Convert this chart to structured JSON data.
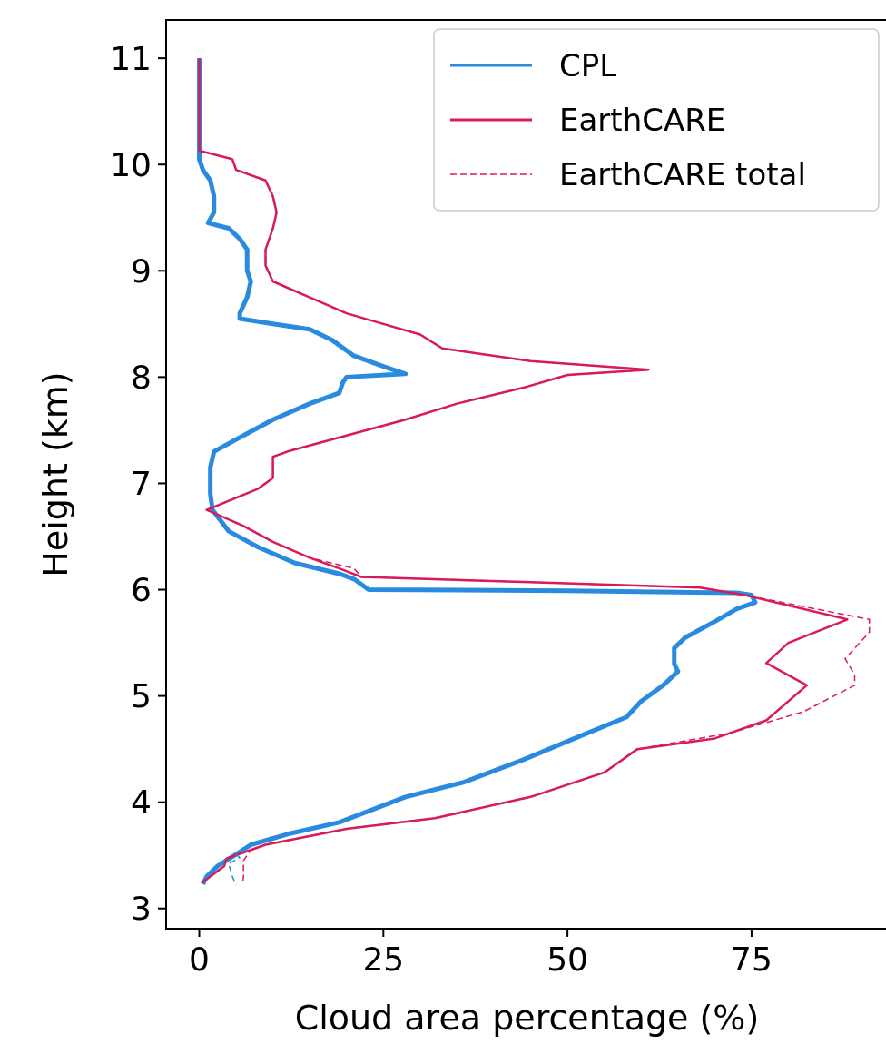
{
  "chart_data": {
    "type": "line",
    "xlabel": "Cloud area percentage (%)",
    "ylabel": "Height (km)",
    "xlim": [
      -4.5,
      93.5
    ],
    "xticks": [
      0,
      25,
      50,
      75
    ],
    "ylim": [
      2.81,
      11.36
    ],
    "yticks": [
      3,
      4,
      5,
      6,
      7,
      8,
      9,
      10,
      11
    ],
    "legend": "top right",
    "grid": false,
    "series": [
      {
        "name": "CPL",
        "color": "#2a8ae0",
        "line_style": "solid",
        "x": [
          0,
          0,
          0.5,
          1.5,
          2,
          2,
          1.2,
          4,
          5.5,
          6.5,
          6.5,
          7,
          6.5,
          5.5,
          5.5,
          10,
          15,
          18,
          21,
          25,
          28,
          20,
          19.5,
          19,
          15,
          10,
          6,
          2,
          1.5,
          1.5,
          1.8,
          4,
          8,
          13,
          19,
          21,
          23,
          50,
          73,
          75,
          75.5,
          73,
          70,
          66,
          64.5,
          64.5,
          65,
          63,
          60,
          58,
          52,
          44,
          36,
          28,
          19,
          12,
          7,
          5,
          2.5,
          1,
          0.5
        ],
        "values": [
          11,
          10.05,
          9.95,
          9.85,
          9.7,
          9.55,
          9.45,
          9.4,
          9.3,
          9.2,
          9,
          8.9,
          8.75,
          8.6,
          8.55,
          8.5,
          8.45,
          8.35,
          8.2,
          8.1,
          8.03,
          8,
          7.95,
          7.85,
          7.75,
          7.6,
          7.45,
          7.3,
          7.15,
          6.9,
          6.75,
          6.55,
          6.4,
          6.25,
          6.15,
          6.1,
          6,
          5.99,
          5.97,
          5.95,
          5.88,
          5.82,
          5.7,
          5.55,
          5.45,
          5.3,
          5.23,
          5.1,
          4.95,
          4.8,
          4.63,
          4.4,
          4.19,
          4.05,
          3.81,
          3.7,
          3.6,
          3.51,
          3.4,
          3.3,
          3.23
        ]
      },
      {
        "name": "EarthCARE",
        "color": "#d81b5a",
        "line_style": "solid",
        "x": [
          0,
          0,
          4.5,
          5,
          9,
          10,
          10.5,
          10,
          9,
          9,
          10,
          15,
          20,
          25,
          30,
          33,
          45,
          61,
          50,
          44,
          35,
          28,
          20,
          12,
          10,
          10,
          8,
          1,
          6,
          10,
          15,
          19,
          22,
          45,
          68,
          74,
          88,
          80,
          77,
          82.5,
          77,
          70,
          59.5,
          55,
          45,
          32,
          20,
          9,
          3.7,
          3.4,
          0.3
        ],
        "values": [
          11,
          10.13,
          10.05,
          9.95,
          9.85,
          9.7,
          9.55,
          9.4,
          9.2,
          9.05,
          8.9,
          8.75,
          8.6,
          8.5,
          8.4,
          8.27,
          8.15,
          8.07,
          8.02,
          7.9,
          7.75,
          7.6,
          7.45,
          7.3,
          7.25,
          7.05,
          6.95,
          6.75,
          6.6,
          6.45,
          6.3,
          6.2,
          6.12,
          6.07,
          6.02,
          5.95,
          5.72,
          5.5,
          5.31,
          5.1,
          4.77,
          4.6,
          4.5,
          4.28,
          4.05,
          3.85,
          3.75,
          3.6,
          3.47,
          3.4,
          3.24
        ]
      },
      {
        "name": "EarthCARE total",
        "color": "#d81b5a",
        "line_style": "dashed",
        "x": [
          0,
          0,
          4.5,
          5,
          9,
          10,
          10.5,
          10,
          9,
          9,
          10,
          15,
          20,
          25,
          30,
          33,
          45,
          61,
          50,
          44,
          35,
          28,
          20,
          12,
          10,
          10,
          8,
          1,
          6,
          10,
          15,
          21,
          22,
          45,
          68,
          74,
          91,
          91,
          87.7,
          89,
          89,
          82,
          72,
          59.5,
          55,
          45,
          32,
          20,
          9,
          7,
          6,
          6,
          5.9
        ],
        "values": [
          11,
          10.13,
          10.05,
          9.95,
          9.85,
          9.7,
          9.55,
          9.4,
          9.2,
          9.05,
          8.9,
          8.75,
          8.6,
          8.5,
          8.4,
          8.27,
          8.15,
          8.07,
          8.02,
          7.9,
          7.75,
          7.6,
          7.45,
          7.3,
          7.25,
          7.05,
          6.95,
          6.75,
          6.6,
          6.45,
          6.3,
          6.2,
          6.12,
          6.07,
          6.02,
          5.95,
          5.72,
          5.6,
          5.35,
          5.2,
          5.1,
          4.85,
          4.65,
          4.5,
          4.28,
          4.05,
          3.85,
          3.75,
          3.6,
          3.55,
          3.45,
          3.3,
          3.24
        ]
      },
      {
        "color": "#2a8ae0",
        "line_style": "dashed",
        "x": [
          5,
          5.5,
          4,
          4.5,
          5
        ],
        "values": [
          3.51,
          3.48,
          3.42,
          3.3,
          3.22
        ]
      }
    ]
  }
}
